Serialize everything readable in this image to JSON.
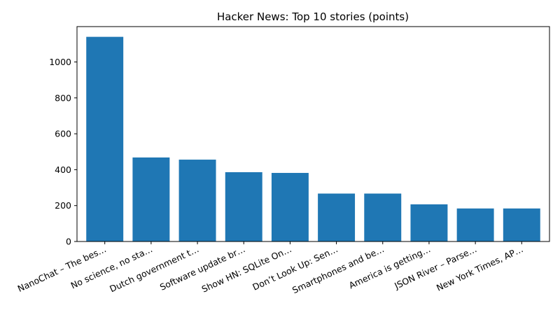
{
  "chart_data": {
    "type": "bar",
    "title": "Hacker News: Top 10 stories (points)",
    "xlabel": "",
    "ylabel": "",
    "categories": [
      "NanoChat – The bes…",
      "No science, no sta…",
      "Dutch government t…",
      "Software update br…",
      "Show HN: SQLite On…",
      "Don’t Look Up: Sen…",
      "Smartphones and be…",
      "America is getting…",
      "JSON River – Parse…",
      "New York Times, AP…"
    ],
    "values": [
      1140,
      468,
      456,
      386,
      382,
      267,
      267,
      207,
      184,
      184
    ],
    "ylim": [
      0,
      1197
    ],
    "yticks": [
      0,
      200,
      400,
      600,
      800,
      1000
    ],
    "bar_color": "#1f77b4",
    "grid": false,
    "legend": "none"
  }
}
